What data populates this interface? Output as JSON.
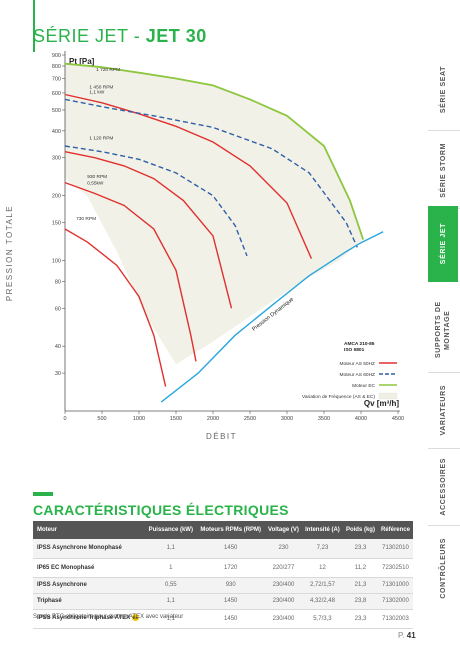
{
  "header": {
    "series_prefix": "SÉRIE JET - ",
    "series_name": "JET 30"
  },
  "chart_data": {
    "type": "line",
    "ylabel_side": "PRESSION TOTALE",
    "y_unit": "Pt [Pa]",
    "xlabel": "DÉBIT",
    "x_unit": "Qv [m³/h]",
    "y_scale": "log",
    "ylim": [
      20,
      900
    ],
    "xlim": [
      0,
      4500
    ],
    "x_ticks": [
      0,
      500,
      1000,
      1500,
      2000,
      2500,
      3000,
      3500,
      4000,
      4500
    ],
    "y_ticks": [
      30,
      40,
      60,
      80,
      100,
      150,
      200,
      300,
      400,
      500,
      600,
      700,
      800,
      900
    ],
    "speed_labels": [
      "1 720 RPM",
      "1 450 RPM",
      "1,1 kW",
      "1 120 RPM",
      "930 RPM",
      "0,55kW",
      "730 RPM"
    ],
    "annotation": "Pression Dynamique",
    "legend_header": [
      "AMCA 210-85",
      "ISO 5801"
    ],
    "legend": [
      {
        "label": "Moteur AS 50HZ",
        "color": "#e0312f",
        "style": "solid"
      },
      {
        "label": "Moteur AS 60HZ",
        "color": "#2f5fa8",
        "style": "dashed"
      },
      {
        "label": "Moteur EC",
        "color": "#8dc63f",
        "style": "solid"
      },
      {
        "label": "Variation de Fréquence (AS & EC)",
        "color": "#f0efe4",
        "style": "area"
      }
    ],
    "series": [
      {
        "type": "red",
        "points": [
          [
            0,
            590
          ],
          [
            500,
            540
          ],
          [
            1000,
            480
          ],
          [
            1500,
            420
          ],
          [
            2000,
            355
          ],
          [
            2500,
            275
          ],
          [
            3000,
            185
          ],
          [
            3330,
            102
          ]
        ]
      },
      {
        "type": "red",
        "points": [
          [
            0,
            320
          ],
          [
            400,
            300
          ],
          [
            800,
            275
          ],
          [
            1200,
            240
          ],
          [
            1600,
            190
          ],
          [
            2000,
            130
          ],
          [
            2250,
            60
          ]
        ]
      },
      {
        "type": "red",
        "points": [
          [
            0,
            230
          ],
          [
            400,
            205
          ],
          [
            800,
            180
          ],
          [
            1200,
            140
          ],
          [
            1500,
            90
          ],
          [
            1700,
            45
          ],
          [
            1770,
            34
          ]
        ]
      },
      {
        "type": "red",
        "points": [
          [
            0,
            140
          ],
          [
            300,
            122
          ],
          [
            700,
            95
          ],
          [
            1000,
            68
          ],
          [
            1200,
            45
          ],
          [
            1360,
            26
          ]
        ]
      },
      {
        "type": "blue",
        "points": [
          [
            0,
            560
          ],
          [
            600,
            510
          ],
          [
            1200,
            470
          ],
          [
            2000,
            415
          ],
          [
            2800,
            330
          ],
          [
            3300,
            255
          ],
          [
            3800,
            150
          ],
          [
            3950,
            115
          ]
        ]
      },
      {
        "type": "blue",
        "points": [
          [
            0,
            340
          ],
          [
            500,
            320
          ],
          [
            1000,
            295
          ],
          [
            1500,
            255
          ],
          [
            2000,
            200
          ],
          [
            2300,
            145
          ],
          [
            2460,
            105
          ]
        ]
      },
      {
        "type": "green",
        "points": [
          [
            0,
            820
          ],
          [
            500,
            790
          ],
          [
            1000,
            745
          ],
          [
            1500,
            700
          ],
          [
            2000,
            650
          ],
          [
            2500,
            560
          ],
          [
            3000,
            470
          ],
          [
            3500,
            340
          ],
          [
            3850,
            190
          ],
          [
            4030,
            125
          ]
        ]
      },
      {
        "type": "cyan",
        "points": [
          [
            1300,
            22
          ],
          [
            1800,
            30
          ],
          [
            2300,
            45
          ],
          [
            2800,
            62
          ],
          [
            3300,
            85
          ],
          [
            3800,
            110
          ],
          [
            4000,
            121
          ],
          [
            4300,
            136
          ]
        ]
      }
    ]
  },
  "tabs": [
    {
      "label": "SÉRIE SEAT",
      "active": false
    },
    {
      "label": "SÉRIE STORM",
      "active": false
    },
    {
      "label": "SÉRIE JET",
      "active": true
    },
    {
      "label": "SUPPORTS DE MONTAGE",
      "active": false
    },
    {
      "label": "VARIATEURS",
      "active": false
    },
    {
      "label": "ACCESSOIRES",
      "active": false
    },
    {
      "label": "CONTRÔLEURS",
      "active": false
    }
  ],
  "section_title": "CARACTÉRISTIQUES ÉLECTRIQUES",
  "table": {
    "headers": [
      "Moteur",
      "Puissance (kW)",
      "Moteurs RPMs (RPM)",
      "Voltage (V)",
      "Intensité (A)",
      "Poids (kg)",
      "Référence"
    ],
    "rows": [
      {
        "motor": "IPSS Asynchrone Monophasé",
        "power": "1,1",
        "rpm": "1450",
        "voltage": "230",
        "intensity": "7,23",
        "weight": "23,3",
        "ref": "71302010"
      },
      {
        "motor": "IP65 EC Monophasé",
        "power": "1",
        "rpm": "1720",
        "voltage": "220/277",
        "intensity": "12",
        "weight": "11,2",
        "ref": "72302510"
      },
      {
        "motor": "IPSS Asynchrone",
        "power": "0,55",
        "rpm": "930",
        "voltage": "230/400",
        "intensity": "2,72/1,57",
        "weight": "21,3",
        "ref": "71301000"
      },
      {
        "motor": "Triphasé",
        "power": "1,1",
        "rpm": "1450",
        "voltage": "230/400",
        "intensity": "4,32/2,48",
        "weight": "23,8",
        "ref": "71302000"
      },
      {
        "motor": "IPSS Asynchrone Triphasé ATEX",
        "power": "1,1",
        "rpm": "1450",
        "voltage": "230/400",
        "intensity": "5,7/3,3",
        "weight": "23,3",
        "ref": "71302003"
      }
    ]
  },
  "footnote": "Sonde PTC obligatoire pour moteur ATEX avec variateur",
  "page": {
    "prefix": "P.",
    "number": "41"
  },
  "colors": {
    "brand": "#29b34a",
    "red": "#e0312f",
    "blue": "#2f5fa8",
    "green": "#8dc63f",
    "cyan": "#2ba6de"
  }
}
